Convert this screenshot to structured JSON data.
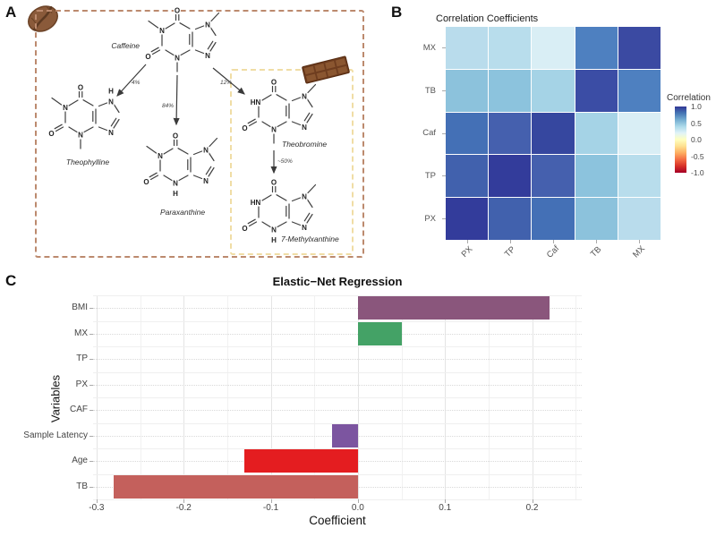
{
  "panels": {
    "a_label": "A",
    "b_label": "B",
    "c_label": "C"
  },
  "panel_a": {
    "molecules": [
      {
        "id": "caffeine",
        "label": "Caffeine",
        "n1": "me",
        "n3": "me",
        "n7": "me"
      },
      {
        "id": "theophylline",
        "label": "Theophylline",
        "n1": "me",
        "n3": "me",
        "n7": "h"
      },
      {
        "id": "paraxanthine",
        "label": "Paraxanthine",
        "n1": "me",
        "n3": "h",
        "n7": "me"
      },
      {
        "id": "theobromine",
        "label": "Theobromine",
        "n1": "h",
        "n3": "me",
        "n7": "me"
      },
      {
        "id": "methylxanthine",
        "label": "7-Methylxanthine",
        "n1": "h",
        "n3": "h",
        "n7": "me"
      }
    ],
    "arrow_labels": [
      "4%",
      "84%",
      "12%",
      "~50%"
    ],
    "outer_border_color": "#bc8a6e",
    "inner_border_color": "#f0dda5"
  },
  "chart_data": [
    {
      "type": "heatmap",
      "panel": "B",
      "title": "Correlation Coefficients",
      "rows_top_to_bottom": [
        "MX",
        "TB",
        "Caf",
        "TP",
        "PX"
      ],
      "cols_left_to_right": [
        "PX",
        "TP",
        "Caf",
        "TB",
        "MX"
      ],
      "values": [
        [
          0.4,
          0.4,
          0.3,
          0.75,
          1.0
        ],
        [
          0.5,
          0.5,
          0.45,
          1.0,
          0.75
        ],
        [
          0.8,
          0.85,
          1.0,
          0.45,
          0.3
        ],
        [
          0.85,
          1.0,
          0.85,
          0.5,
          0.4
        ],
        [
          1.0,
          0.85,
          0.8,
          0.5,
          0.4
        ]
      ],
      "cell_colors": [
        [
          "#b9dcec",
          "#b8ddec",
          "#d9eef5",
          "#4e80c0",
          "#3b4aa2"
        ],
        [
          "#8cc2dc",
          "#8cc3dd",
          "#a5d3e6",
          "#3b4da5",
          "#4e80c0"
        ],
        [
          "#4470b6",
          "#4560ae",
          "#36479f",
          "#a5d3e6",
          "#d9eef5"
        ],
        [
          "#4161ad",
          "#333c9b",
          "#4560ae",
          "#8cc3dd",
          "#b8ddec"
        ],
        [
          "#333c9b",
          "#4161ad",
          "#4470b6",
          "#8cc2dc",
          "#b9dcec"
        ]
      ],
      "legend": {
        "title": "Correlation",
        "tick_labels": [
          "1.0",
          "0.5",
          "0.0",
          "-0.5",
          "-1.0"
        ],
        "range": [
          1.0,
          -1.0
        ],
        "gradient_top_to_bottom": [
          "#313695",
          "#4575b4",
          "#74add1",
          "#abd9e9",
          "#e0f3f8",
          "#ffffbf",
          "#fee090",
          "#fdae61",
          "#f46d43",
          "#d73027",
          "#a50026"
        ]
      },
      "grid": false,
      "legend_position": "right"
    },
    {
      "type": "bar",
      "panel": "C",
      "orientation": "horizontal",
      "title": "Elastic−Net Regression",
      "xlabel": "Coefficient",
      "ylabel": "Variables",
      "categories_top_to_bottom": [
        "BMI",
        "MX",
        "TP",
        "PX",
        "CAF",
        "Sample Latency",
        "Age",
        "TB"
      ],
      "values": [
        0.22,
        0.05,
        0,
        0,
        0,
        -0.03,
        -0.13,
        -0.28
      ],
      "bar_colors": [
        "#8a567c",
        "#44a266",
        "",
        "",
        "",
        "#7c55a0",
        "#e41d20",
        "#c4605c"
      ],
      "xlim": [
        -0.304,
        0.257
      ],
      "xtick_labels": [
        "-0.3",
        "-0.2",
        "-0.1",
        "0.0",
        "0.1",
        "0.2"
      ],
      "grid": true,
      "legend_position": "none"
    }
  ]
}
